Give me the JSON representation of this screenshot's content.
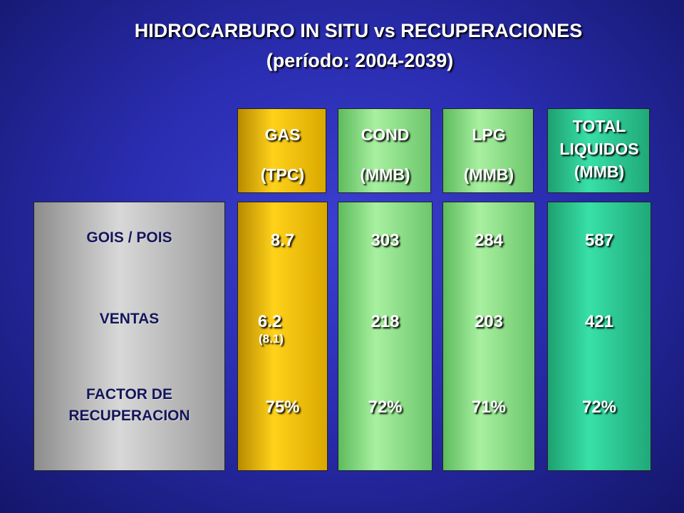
{
  "title": "HIDROCARBURO IN SITU vs RECUPERACIONES",
  "subtitle": "(período: 2004-2039)",
  "rows": [
    [
      "GOIS / POIS"
    ],
    [
      "VENTAS"
    ],
    [
      "FACTOR DE",
      "RECUPERACION"
    ]
  ],
  "columns": [
    {
      "header": [
        "GAS",
        "(TPC)"
      ],
      "cells": [
        "8.7",
        "6.2",
        "75%"
      ],
      "note": "(8.1)"
    },
    {
      "header": [
        "COND",
        "(MMB)"
      ],
      "cells": [
        "303",
        "218",
        "72%"
      ]
    },
    {
      "header": [
        "LPG",
        "(MMB)"
      ],
      "cells": [
        "284",
        "203",
        "71%"
      ]
    },
    {
      "header": [
        "TOTAL",
        "LIQUIDOS",
        "(MMB)"
      ],
      "cells": [
        "587",
        "421",
        "72%"
      ]
    }
  ]
}
